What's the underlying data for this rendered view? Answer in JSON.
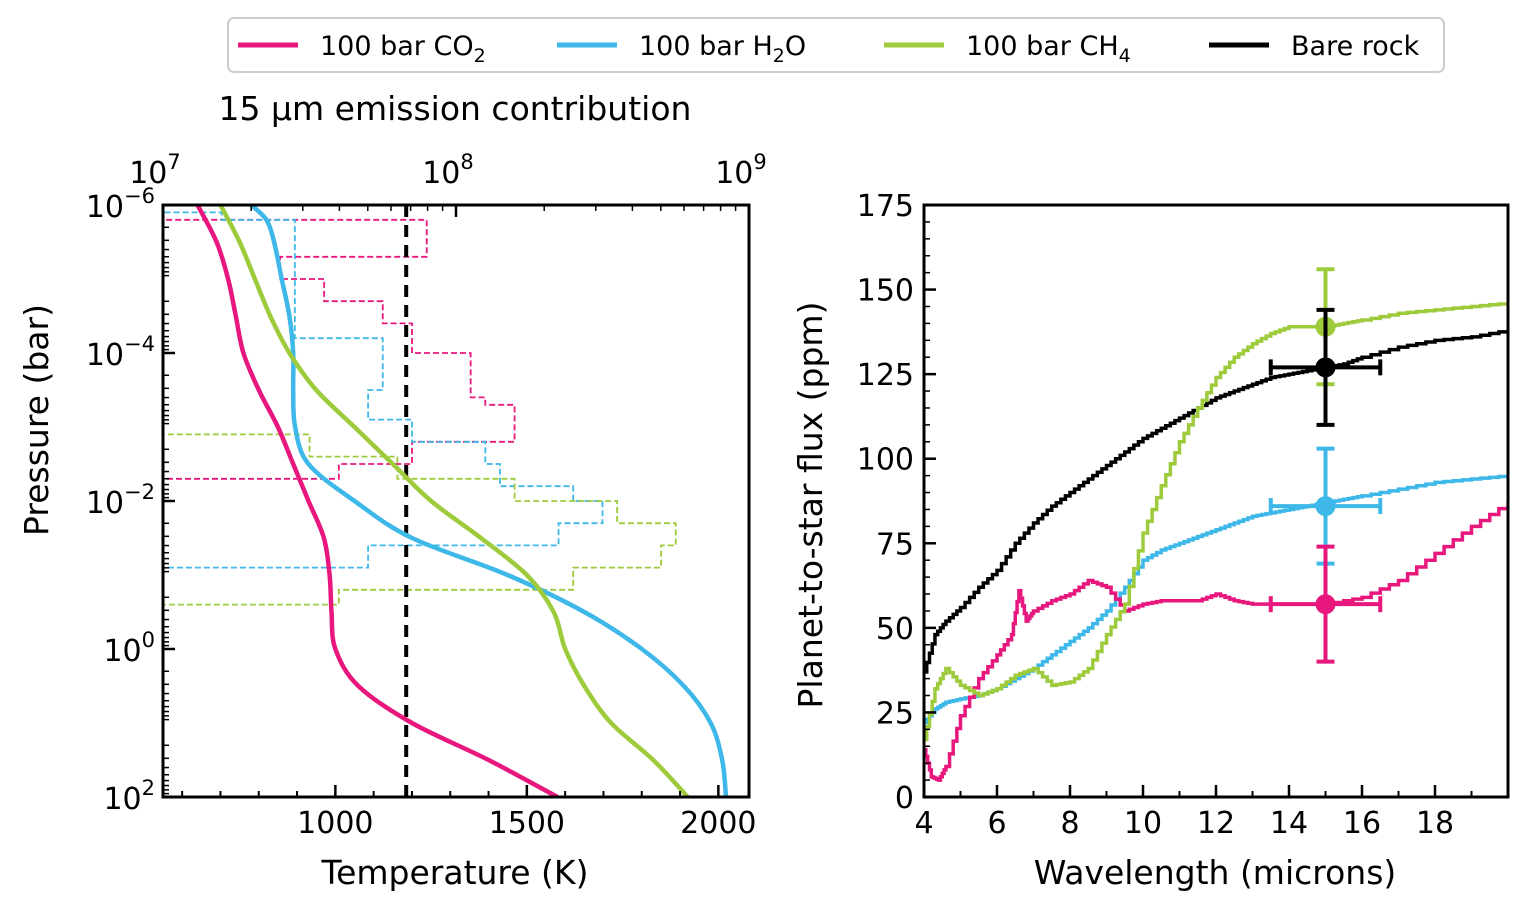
{
  "colors": {
    "co2": "#e8177e",
    "h2o": "#3db8e8",
    "ch4": "#9dcb3c",
    "rock": "#000000",
    "vline": "#000000"
  },
  "legend": [
    {
      "id": "co2",
      "prefix": "100 bar CO",
      "sub": "2",
      "suffix": ""
    },
    {
      "id": "h2o",
      "prefix": "100 bar H",
      "sub": "2",
      "suffix": "O"
    },
    {
      "id": "ch4",
      "prefix": "100 bar CH",
      "sub": "4",
      "suffix": ""
    },
    {
      "id": "rock",
      "prefix": "Bare rock",
      "sub": "",
      "suffix": ""
    }
  ],
  "chart_data": [
    {
      "type": "line",
      "id": "pt-profile",
      "xlabel": "Temperature (K)",
      "ylabel": "Pressure (bar)",
      "top_axis_label": "15 μm emission contribution",
      "xlim": [
        550,
        2080
      ],
      "ylim_log10": [
        2,
        -6
      ],
      "x_ticks": [
        1000,
        1500,
        2000
      ],
      "y_ticks": [
        {
          "exp": "−6",
          "v": -6
        },
        {
          "exp": "−4",
          "v": -4
        },
        {
          "exp": "−2",
          "v": -2
        },
        {
          "exp": "0",
          "v": 0
        },
        {
          "exp": "2",
          "v": 2
        }
      ],
      "top_ticks": [
        {
          "exp": "7",
          "v": 7
        },
        {
          "exp": "8",
          "v": 8
        },
        {
          "exp": "9",
          "v": 9
        }
      ],
      "top_xlim_log10": [
        7,
        9
      ],
      "vline_top_log10": 7.83,
      "series": [
        {
          "name": "100 bar CO2",
          "id": "co2",
          "logP": [
            -6,
            -5.5,
            -5,
            -4.5,
            -4,
            -3.5,
            -3,
            -2.5,
            -2,
            -1.5,
            -1,
            -0.5,
            0,
            0.5,
            1,
            1.5,
            2
          ],
          "T": [
            640,
            690,
            720,
            740,
            760,
            800,
            850,
            890,
            930,
            970,
            985,
            990,
            1000,
            1060,
            1200,
            1400,
            1580
          ]
        },
        {
          "name": "100 bar H2O",
          "id": "h2o",
          "logP": [
            -6,
            -5.8,
            -5.5,
            -5,
            -4.5,
            -4,
            -3.5,
            -3,
            -2.5,
            -2,
            -1.5,
            -1,
            -0.5,
            0,
            0.5,
            1,
            1.5,
            2
          ],
          "T": [
            780,
            820,
            840,
            860,
            880,
            890,
            890,
            895,
            930,
            1050,
            1200,
            1450,
            1650,
            1800,
            1910,
            1980,
            2010,
            2020
          ]
        },
        {
          "name": "100 bar CH4",
          "id": "ch4",
          "logP": [
            -6,
            -5.5,
            -5,
            -4.5,
            -4,
            -3.5,
            -3,
            -2.5,
            -2,
            -1.5,
            -1,
            -0.5,
            0,
            0.5,
            1,
            1.5,
            2
          ],
          "T": [
            700,
            750,
            790,
            830,
            880,
            950,
            1050,
            1150,
            1250,
            1380,
            1500,
            1570,
            1600,
            1650,
            1720,
            1830,
            1920
          ]
        }
      ],
      "contribution": [
        {
          "id": "co2",
          "logP": [
            -6,
            -5.8,
            -5.3,
            -5,
            -4.7,
            -4.4,
            -4,
            -3.7,
            -3.4,
            -3.3,
            -3.1,
            -2.8,
            -2.5,
            -2.3
          ],
          "log10": [
            7.0,
            7.9,
            7.4,
            7.55,
            7.75,
            7.85,
            8.05,
            8.05,
            8.1,
            8.2,
            8.2,
            7.85,
            7.6,
            7.0
          ]
        },
        {
          "id": "h2o",
          "logP": [
            -6,
            -5.9,
            -5.8,
            -4.2,
            -3.9,
            -3.5,
            -3.1,
            -2.8,
            -2.5,
            -2.2,
            -2.0,
            -1.7,
            -1.4,
            -1.1
          ],
          "log10": [
            7.0,
            7.2,
            7.45,
            7.75,
            7.75,
            7.7,
            7.85,
            8.1,
            8.15,
            8.4,
            8.5,
            8.35,
            7.7,
            7.0
          ]
        },
        {
          "id": "ch4",
          "logP": [
            -3.2,
            -2.9,
            -2.6,
            -2.3,
            -2.0,
            -1.7,
            -1.4,
            -1.1,
            -0.8,
            -0.6
          ],
          "log10": [
            7.0,
            7.5,
            7.8,
            8.2,
            8.55,
            8.75,
            8.7,
            8.4,
            7.6,
            7.0
          ]
        }
      ]
    },
    {
      "type": "line",
      "id": "emission-spectrum",
      "xlabel": "Wavelength (microns)",
      "ylabel": "Planet-to-star flux (ppm)",
      "xlim": [
        4,
        20
      ],
      "ylim": [
        0,
        175
      ],
      "x_ticks": [
        4,
        6,
        8,
        10,
        12,
        14,
        16,
        18
      ],
      "y_ticks": [
        0,
        25,
        50,
        75,
        100,
        125,
        150,
        175
      ],
      "series": [
        {
          "name": "Bare rock",
          "id": "rock",
          "x": [
            4,
            4.3,
            4.6,
            5,
            5.5,
            6,
            6.5,
            7,
            7.5,
            8,
            8.5,
            9,
            9.5,
            10,
            10.5,
            11,
            11.5,
            12,
            12.5,
            13,
            13.5,
            14,
            14.5,
            15,
            15.5,
            16,
            17,
            18,
            19,
            20
          ],
          "y": [
            37,
            48,
            52,
            56,
            62,
            67,
            75,
            81,
            86,
            90,
            94,
            98,
            102,
            106,
            109,
            112,
            115,
            118,
            120,
            122,
            124,
            125,
            126,
            127,
            128,
            130,
            133,
            135,
            136,
            138
          ]
        },
        {
          "name": "100 bar H2O",
          "id": "h2o",
          "x": [
            4,
            4.3,
            4.6,
            5,
            5.5,
            6,
            6.5,
            7,
            7.5,
            8,
            8.5,
            9,
            9.5,
            10,
            10.5,
            11,
            11.5,
            12,
            12.5,
            13,
            13.5,
            14,
            14.5,
            15,
            15.5,
            16,
            17,
            18,
            19,
            20
          ],
          "y": [
            22,
            26,
            28,
            29,
            30,
            32,
            35,
            38,
            42,
            46,
            50,
            55,
            62,
            70,
            73,
            75,
            77,
            79,
            81,
            83,
            84,
            85,
            86,
            87,
            88,
            89,
            91,
            93,
            94,
            95
          ]
        },
        {
          "name": "100 bar CO2",
          "id": "co2",
          "x": [
            4,
            4.2,
            4.4,
            4.6,
            5,
            5.5,
            6,
            6.4,
            6.6,
            6.8,
            7,
            7.5,
            8,
            8.5,
            9,
            9.5,
            10,
            10.5,
            11,
            11.5,
            12,
            12.5,
            13,
            14,
            15,
            16,
            17,
            18,
            19,
            20
          ],
          "y": [
            14,
            6,
            5,
            9,
            24,
            35,
            42,
            48,
            61,
            52,
            55,
            58,
            60,
            64,
            62,
            55,
            57,
            58,
            58,
            58,
            60,
            58,
            57,
            57,
            57,
            59,
            64,
            72,
            80,
            87
          ]
        },
        {
          "name": "100 bar CH4",
          "id": "ch4",
          "x": [
            4,
            4.3,
            4.6,
            5,
            5.5,
            6,
            6.5,
            7,
            7.5,
            8,
            8.5,
            9,
            9.5,
            10,
            10.5,
            11,
            11.5,
            12,
            12.5,
            13,
            13.5,
            14,
            14.5,
            15,
            15.5,
            16,
            17,
            18,
            19,
            20
          ],
          "y": [
            17,
            32,
            38,
            33,
            30,
            32,
            36,
            38,
            33,
            34,
            38,
            48,
            57,
            78,
            92,
            105,
            115,
            124,
            130,
            134,
            137,
            139,
            139,
            139,
            140,
            141,
            143,
            144,
            145,
            146
          ]
        }
      ],
      "points": [
        {
          "id": "ch4",
          "x": 15,
          "y": 139,
          "yerr": 17,
          "xerr": 0
        },
        {
          "id": "rock",
          "x": 15,
          "y": 127,
          "yerr": 17,
          "xerr": 1.5
        },
        {
          "id": "h2o",
          "x": 15,
          "y": 86,
          "yerr": 17,
          "xerr": 1.5
        },
        {
          "id": "co2",
          "x": 15,
          "y": 57,
          "yerr": 17,
          "xerr": 1.5
        }
      ]
    }
  ]
}
